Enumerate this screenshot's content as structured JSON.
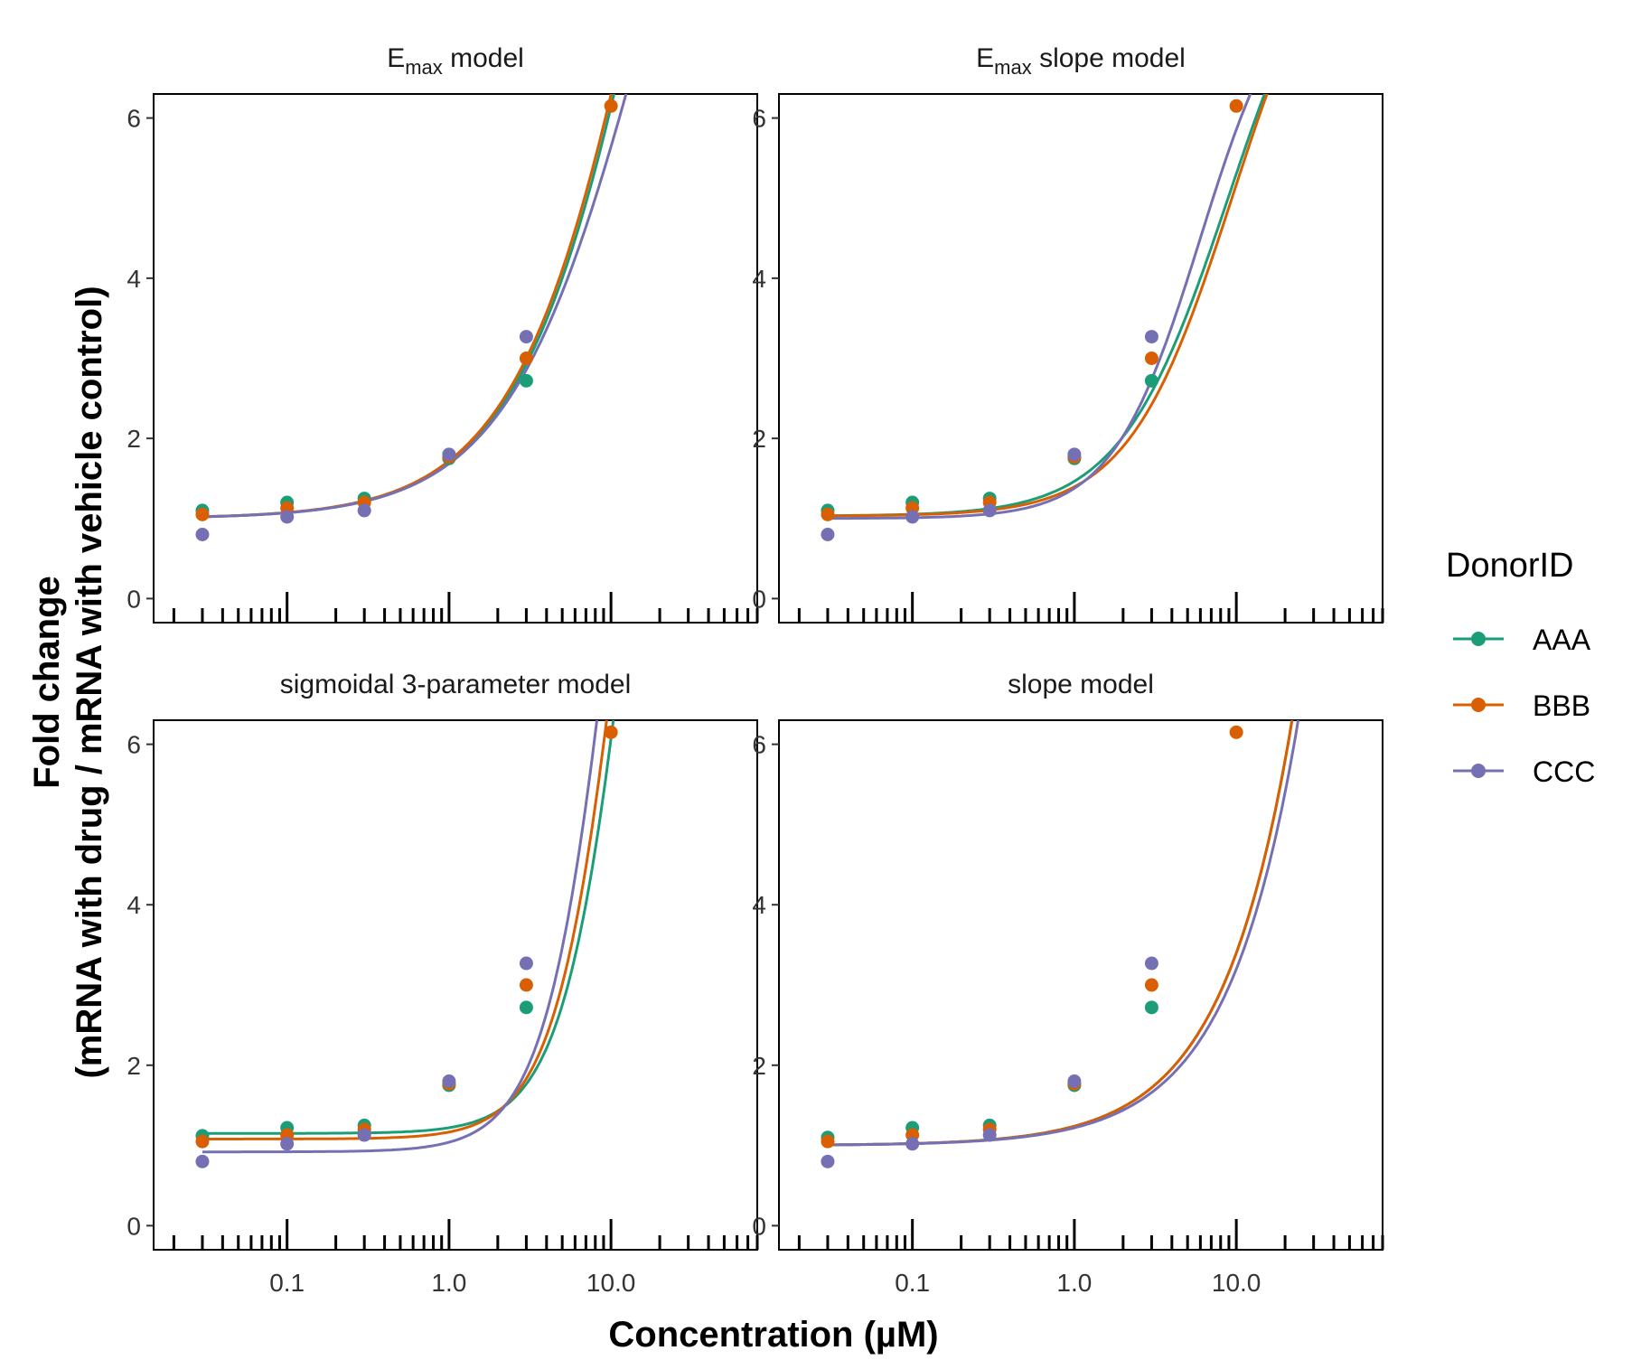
{
  "chart_data": [
    {
      "type": "scatter",
      "title_main": "E",
      "title_sub": "max",
      "title_rest": " model",
      "xscale": "log",
      "xlim": [
        0.015,
        80
      ],
      "ylim": [
        -0.3,
        6.3
      ],
      "y_ticks": [
        0,
        2,
        4,
        6
      ],
      "x": [
        0.03,
        0.1,
        0.3,
        1,
        3,
        10
      ],
      "series": [
        {
          "name": "AAA",
          "color": "#1b9e77",
          "points": [
            1.1,
            1.2,
            1.25,
            1.75,
            2.72,
            null
          ],
          "fit": {
            "e0": 1.0,
            "emax": 18.0,
            "ec50": 25.0,
            "h": 1
          }
        },
        {
          "name": "BBB",
          "color": "#d95f02",
          "points": [
            1.05,
            1.13,
            1.2,
            1.77,
            3.0,
            6.15
          ],
          "fit": {
            "e0": 1.0,
            "emax": 18.0,
            "ec50": 24.0,
            "h": 1
          }
        },
        {
          "name": "CCC",
          "color": "#7570b3",
          "points": [
            0.8,
            1.02,
            1.1,
            1.8,
            3.27,
            null
          ],
          "fit": {
            "e0": 1.0,
            "emax": 13.0,
            "ec50": 18.0,
            "h": 1
          }
        }
      ]
    },
    {
      "type": "scatter",
      "title_main": "E",
      "title_sub": "max",
      "title_rest": " slope model",
      "xscale": "log",
      "xlim": [
        0.015,
        80
      ],
      "ylim": [
        -0.3,
        6.3
      ],
      "y_ticks": [
        0,
        2,
        4,
        6
      ],
      "x": [
        0.03,
        0.1,
        0.3,
        1,
        3,
        10
      ],
      "series": [
        {
          "name": "AAA",
          "color": "#1b9e77",
          "points": [
            1.1,
            1.2,
            1.25,
            1.75,
            2.72,
            null
          ],
          "fit": {
            "e0": 1.03,
            "emax": 8.0,
            "ec50": 9.0,
            "h": 1.3
          }
        },
        {
          "name": "BBB",
          "color": "#d95f02",
          "points": [
            1.05,
            1.13,
            1.2,
            1.77,
            3.0,
            6.15
          ],
          "fit": {
            "e0": 1.03,
            "emax": 8.0,
            "ec50": 9.5,
            "h": 1.35
          }
        },
        {
          "name": "CCC",
          "color": "#7570b3",
          "points": [
            0.8,
            1.02,
            1.1,
            1.8,
            3.27,
            null
          ],
          "fit": {
            "e0": 1.0,
            "emax": 7.0,
            "ec50": 6.0,
            "h": 1.6
          }
        }
      ]
    },
    {
      "type": "scatter",
      "title_main": "sigmoidal 3-parameter model",
      "title_sub": "",
      "title_rest": "",
      "xscale": "log",
      "xlim": [
        0.015,
        80
      ],
      "ylim": [
        -0.3,
        6.3
      ],
      "y_ticks": [
        0,
        2,
        4,
        6
      ],
      "x": [
        0.03,
        0.1,
        0.3,
        1,
        3,
        10
      ],
      "series": [
        {
          "name": "AAA",
          "color": "#1b9e77",
          "points": [
            1.12,
            1.22,
            1.25,
            1.75,
            2.72,
            null
          ],
          "fit": {
            "e0": 1.15,
            "emax": 16.0,
            "ec50": 15.0,
            "h": 2.0
          }
        },
        {
          "name": "BBB",
          "color": "#d95f02",
          "points": [
            1.05,
            1.13,
            1.2,
            1.77,
            3.0,
            6.15
          ],
          "fit": {
            "e0": 1.08,
            "emax": 16.0,
            "ec50": 13.5,
            "h": 2.0
          }
        },
        {
          "name": "CCC",
          "color": "#7570b3",
          "points": [
            0.8,
            1.02,
            1.13,
            1.8,
            3.27,
            null
          ],
          "fit": {
            "e0": 0.92,
            "emax": 16.0,
            "ec50": 11.5,
            "h": 2.0
          }
        }
      ]
    },
    {
      "type": "scatter",
      "title_main": "slope model",
      "title_sub": "",
      "title_rest": "",
      "xscale": "log",
      "xlim": [
        0.015,
        80
      ],
      "ylim": [
        -0.3,
        6.3
      ],
      "y_ticks": [
        0,
        2,
        4,
        6
      ],
      "x": [
        0.03,
        0.1,
        0.3,
        1,
        3,
        10
      ],
      "series": [
        {
          "name": "AAA",
          "color": "#1b9e77",
          "points": [
            1.1,
            1.22,
            1.25,
            1.75,
            2.72,
            null
          ],
          "fit": {
            "e0": 1.0,
            "slope": 0.24
          }
        },
        {
          "name": "BBB",
          "color": "#d95f02",
          "points": [
            1.05,
            1.13,
            1.2,
            1.77,
            3.0,
            6.15
          ],
          "fit": {
            "e0": 1.0,
            "slope": 0.24
          }
        },
        {
          "name": "CCC",
          "color": "#7570b3",
          "points": [
            0.8,
            1.02,
            1.13,
            1.8,
            3.27,
            null
          ],
          "fit": {
            "e0": 1.0,
            "slope": 0.22
          }
        }
      ]
    }
  ],
  "x_tick_labels": [
    "0.1",
    "1.0",
    "10.0"
  ],
  "x_tick_values": [
    0.1,
    1,
    10
  ],
  "xlabel": "Concentration (µM)",
  "ylabel_line1": "Fold change",
  "ylabel_line2": "(mRNA with drug / mRNA with vehicle control)",
  "legend": {
    "title": "DonorID",
    "items": [
      {
        "label": "AAA",
        "color": "#1b9e77"
      },
      {
        "label": "BBB",
        "color": "#d95f02"
      },
      {
        "label": "CCC",
        "color": "#7570b3"
      }
    ]
  }
}
